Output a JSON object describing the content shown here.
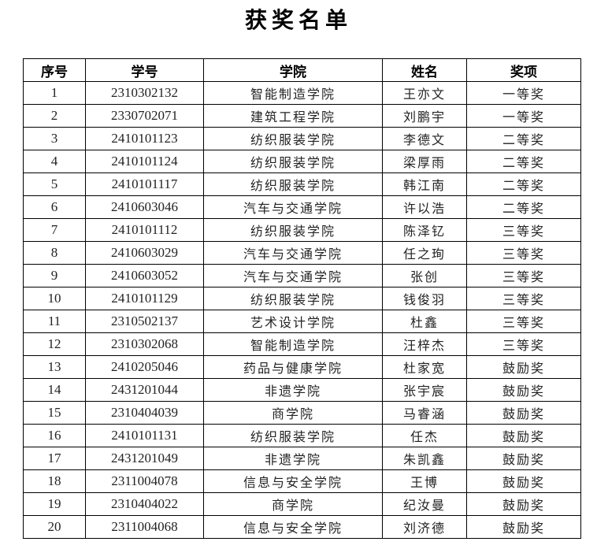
{
  "title": "获奖名单",
  "headers": [
    "序号",
    "学号",
    "学院",
    "姓名",
    "奖项"
  ],
  "rows": [
    [
      "1",
      "2310302132",
      "智能制造学院",
      "王亦文",
      "一等奖"
    ],
    [
      "2",
      "2330702071",
      "建筑工程学院",
      "刘鹏宇",
      "一等奖"
    ],
    [
      "3",
      "2410101123",
      "纺织服装学院",
      "李德文",
      "二等奖"
    ],
    [
      "4",
      "2410101124",
      "纺织服装学院",
      "梁厚雨",
      "二等奖"
    ],
    [
      "5",
      "2410101117",
      "纺织服装学院",
      "韩江南",
      "二等奖"
    ],
    [
      "6",
      "2410603046",
      "汽车与交通学院",
      "许以浩",
      "二等奖"
    ],
    [
      "7",
      "2410101112",
      "纺织服装学院",
      "陈泽钇",
      "三等奖"
    ],
    [
      "8",
      "2410603029",
      "汽车与交通学院",
      "任之珣",
      "三等奖"
    ],
    [
      "9",
      "2410603052",
      "汽车与交通学院",
      "张创",
      "三等奖"
    ],
    [
      "10",
      "2410101129",
      "纺织服装学院",
      "钱俊羽",
      "三等奖"
    ],
    [
      "11",
      "2310502137",
      "艺术设计学院",
      "杜鑫",
      "三等奖"
    ],
    [
      "12",
      "2310302068",
      "智能制造学院",
      "汪梓杰",
      "三等奖"
    ],
    [
      "13",
      "2410205046",
      "药品与健康学院",
      "杜家宽",
      "鼓励奖"
    ],
    [
      "14",
      "2431201044",
      "非遗学院",
      "张宇宸",
      "鼓励奖"
    ],
    [
      "15",
      "2310404039",
      "商学院",
      "马睿涵",
      "鼓励奖"
    ],
    [
      "16",
      "2410101131",
      "纺织服装学院",
      "任杰",
      "鼓励奖"
    ],
    [
      "17",
      "2431201049",
      "非遗学院",
      "朱凯鑫",
      "鼓励奖"
    ],
    [
      "18",
      "2311004078",
      "信息与安全学院",
      "王博",
      "鼓励奖"
    ],
    [
      "19",
      "2310404022",
      "商学院",
      "纪汝曼",
      "鼓励奖"
    ],
    [
      "20",
      "2311004068",
      "信息与安全学院",
      "刘济德",
      "鼓励奖"
    ]
  ]
}
